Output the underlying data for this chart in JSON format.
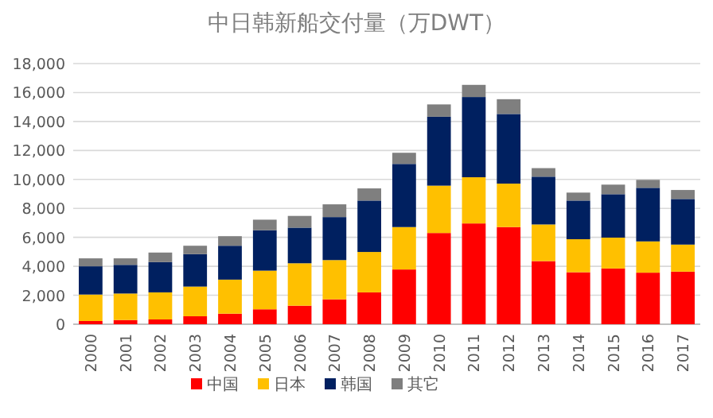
{
  "chart_data": {
    "type": "bar",
    "stacked": true,
    "title": "中日韩新船交付量（万DWT）",
    "categories": [
      "2000",
      "2001",
      "2002",
      "2003",
      "2004",
      "2005",
      "2006",
      "2007",
      "2008",
      "2009",
      "2010",
      "2011",
      "2012",
      "2013",
      "2014",
      "2015",
      "2016",
      "2017"
    ],
    "series": [
      {
        "name": "中国",
        "color": "#ff0000",
        "values": [
          220,
          290,
          330,
          550,
          730,
          1030,
          1280,
          1720,
          2200,
          3780,
          6300,
          6960,
          6710,
          4360,
          3590,
          3850,
          3560,
          3630
        ]
      },
      {
        "name": "日本",
        "color": "#ffc000",
        "values": [
          1830,
          1830,
          1870,
          2050,
          2350,
          2670,
          2930,
          2710,
          2790,
          2930,
          3270,
          3190,
          3000,
          2530,
          2280,
          2130,
          2160,
          1870
        ]
      },
      {
        "name": "韩国",
        "color": "#002060",
        "values": [
          1950,
          1980,
          2090,
          2240,
          2340,
          2790,
          2460,
          2970,
          3550,
          4360,
          4760,
          5540,
          4810,
          3300,
          2670,
          3000,
          3700,
          3150
        ]
      },
      {
        "name": "其它",
        "color": "#7f7f7f",
        "values": [
          550,
          450,
          660,
          580,
          660,
          730,
          810,
          880,
          840,
          770,
          850,
          840,
          1020,
          590,
          550,
          660,
          550,
          620
        ]
      }
    ],
    "ylim": [
      0,
      18000
    ],
    "yticks": [
      {
        "value": 0,
        "label": "0"
      },
      {
        "value": 2000,
        "label": "2,000"
      },
      {
        "value": 4000,
        "label": "4,000"
      },
      {
        "value": 6000,
        "label": "6,000"
      },
      {
        "value": 8000,
        "label": "8,000"
      },
      {
        "value": 10000,
        "label": "10,000"
      },
      {
        "value": 12000,
        "label": "12,000"
      },
      {
        "value": 14000,
        "label": "14,000"
      },
      {
        "value": 16000,
        "label": "16,000"
      },
      {
        "value": 18000,
        "label": "18,000"
      }
    ],
    "grid": "y",
    "legend": "bottom"
  }
}
